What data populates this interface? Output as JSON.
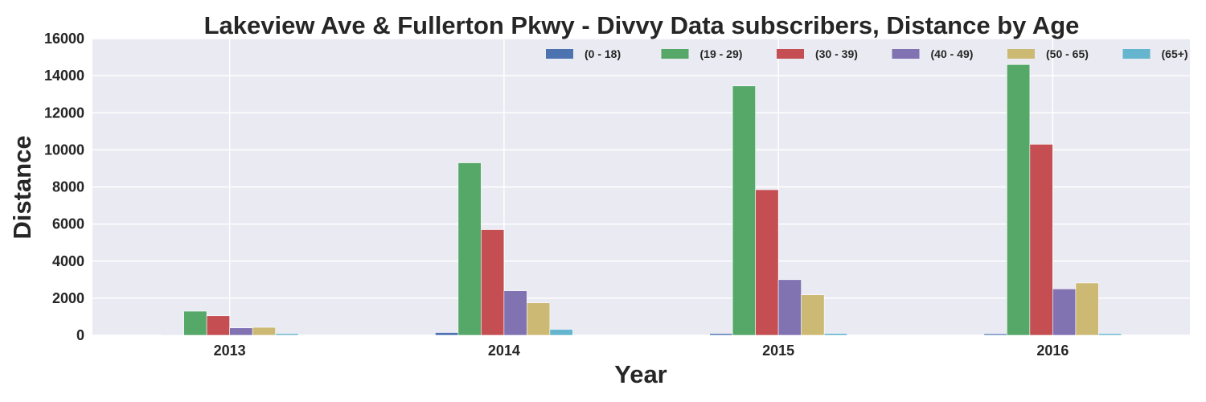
{
  "chart_data": {
    "type": "bar",
    "title": "Lakeview Ave & Fullerton Pkwy - Divvy Data subscribers, Distance by Age",
    "xlabel": "Year",
    "ylabel": "Distance",
    "ylim": [
      0,
      16000
    ],
    "yticks": [
      0,
      2000,
      4000,
      6000,
      8000,
      10000,
      12000,
      14000,
      16000
    ],
    "grid": true,
    "legend_position": "top-right",
    "categories": [
      "2013",
      "2014",
      "2015",
      "2016"
    ],
    "series": [
      {
        "name": "(0 - 18)",
        "color": "#4c72b0",
        "values": [
          30,
          150,
          90,
          80
        ]
      },
      {
        "name": "(19 - 29)",
        "color": "#55a868",
        "values": [
          1300,
          9300,
          13450,
          14600
        ]
      },
      {
        "name": "(30 - 39)",
        "color": "#c44e52",
        "values": [
          1050,
          5700,
          7850,
          10300
        ]
      },
      {
        "name": "(40 - 49)",
        "color": "#8172b2",
        "values": [
          400,
          2400,
          3000,
          2500
        ]
      },
      {
        "name": "(50 - 65)",
        "color": "#ccb974",
        "values": [
          430,
          1750,
          2180,
          2820
        ]
      },
      {
        "name": "(65+)",
        "color": "#64b5cd",
        "values": [
          90,
          320,
          100,
          90
        ]
      }
    ]
  }
}
